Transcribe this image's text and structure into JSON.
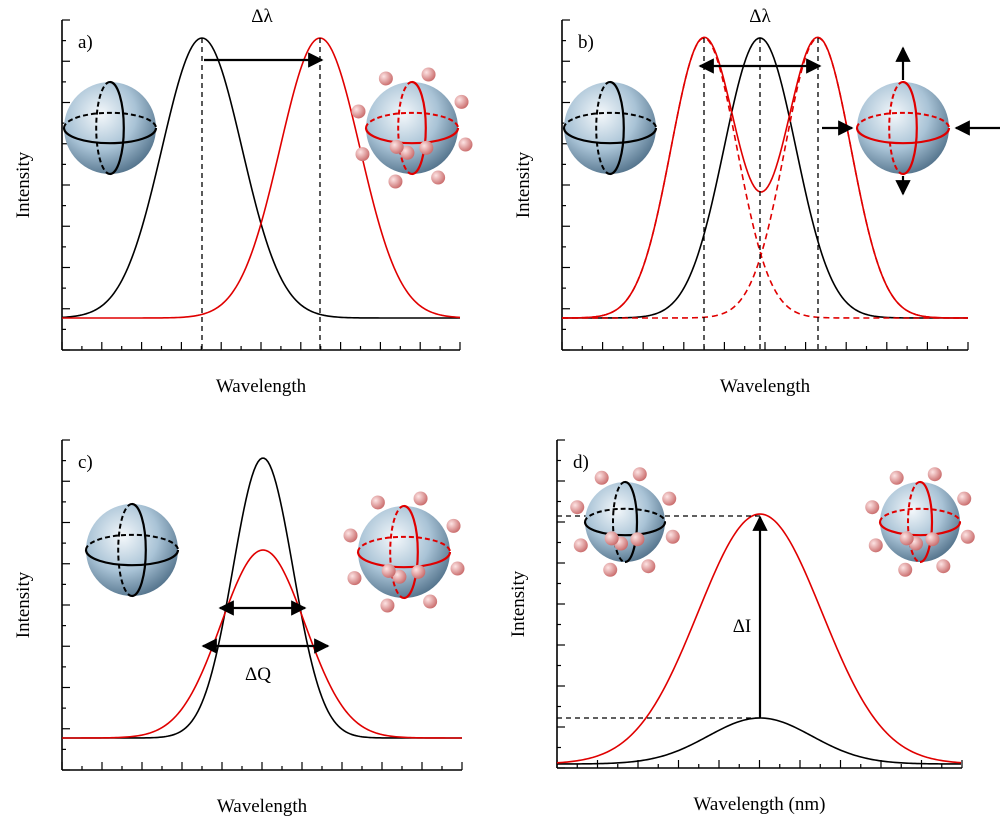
{
  "panels": [
    {
      "label": "a)",
      "x_label": "Wavelength",
      "y_label": "Intensity",
      "annotation": "Δλ"
    },
    {
      "label": "b)",
      "x_label": "Wavelength",
      "y_label": "Intensity",
      "annotation": "Δλ"
    },
    {
      "label": "c)",
      "x_label": "Wavelength",
      "y_label": "Intensity",
      "annotation": "ΔQ"
    },
    {
      "label": "d)",
      "x_label": "Wavelength (nm)",
      "y_label": "Intensity",
      "annotation": "ΔI"
    }
  ]
}
